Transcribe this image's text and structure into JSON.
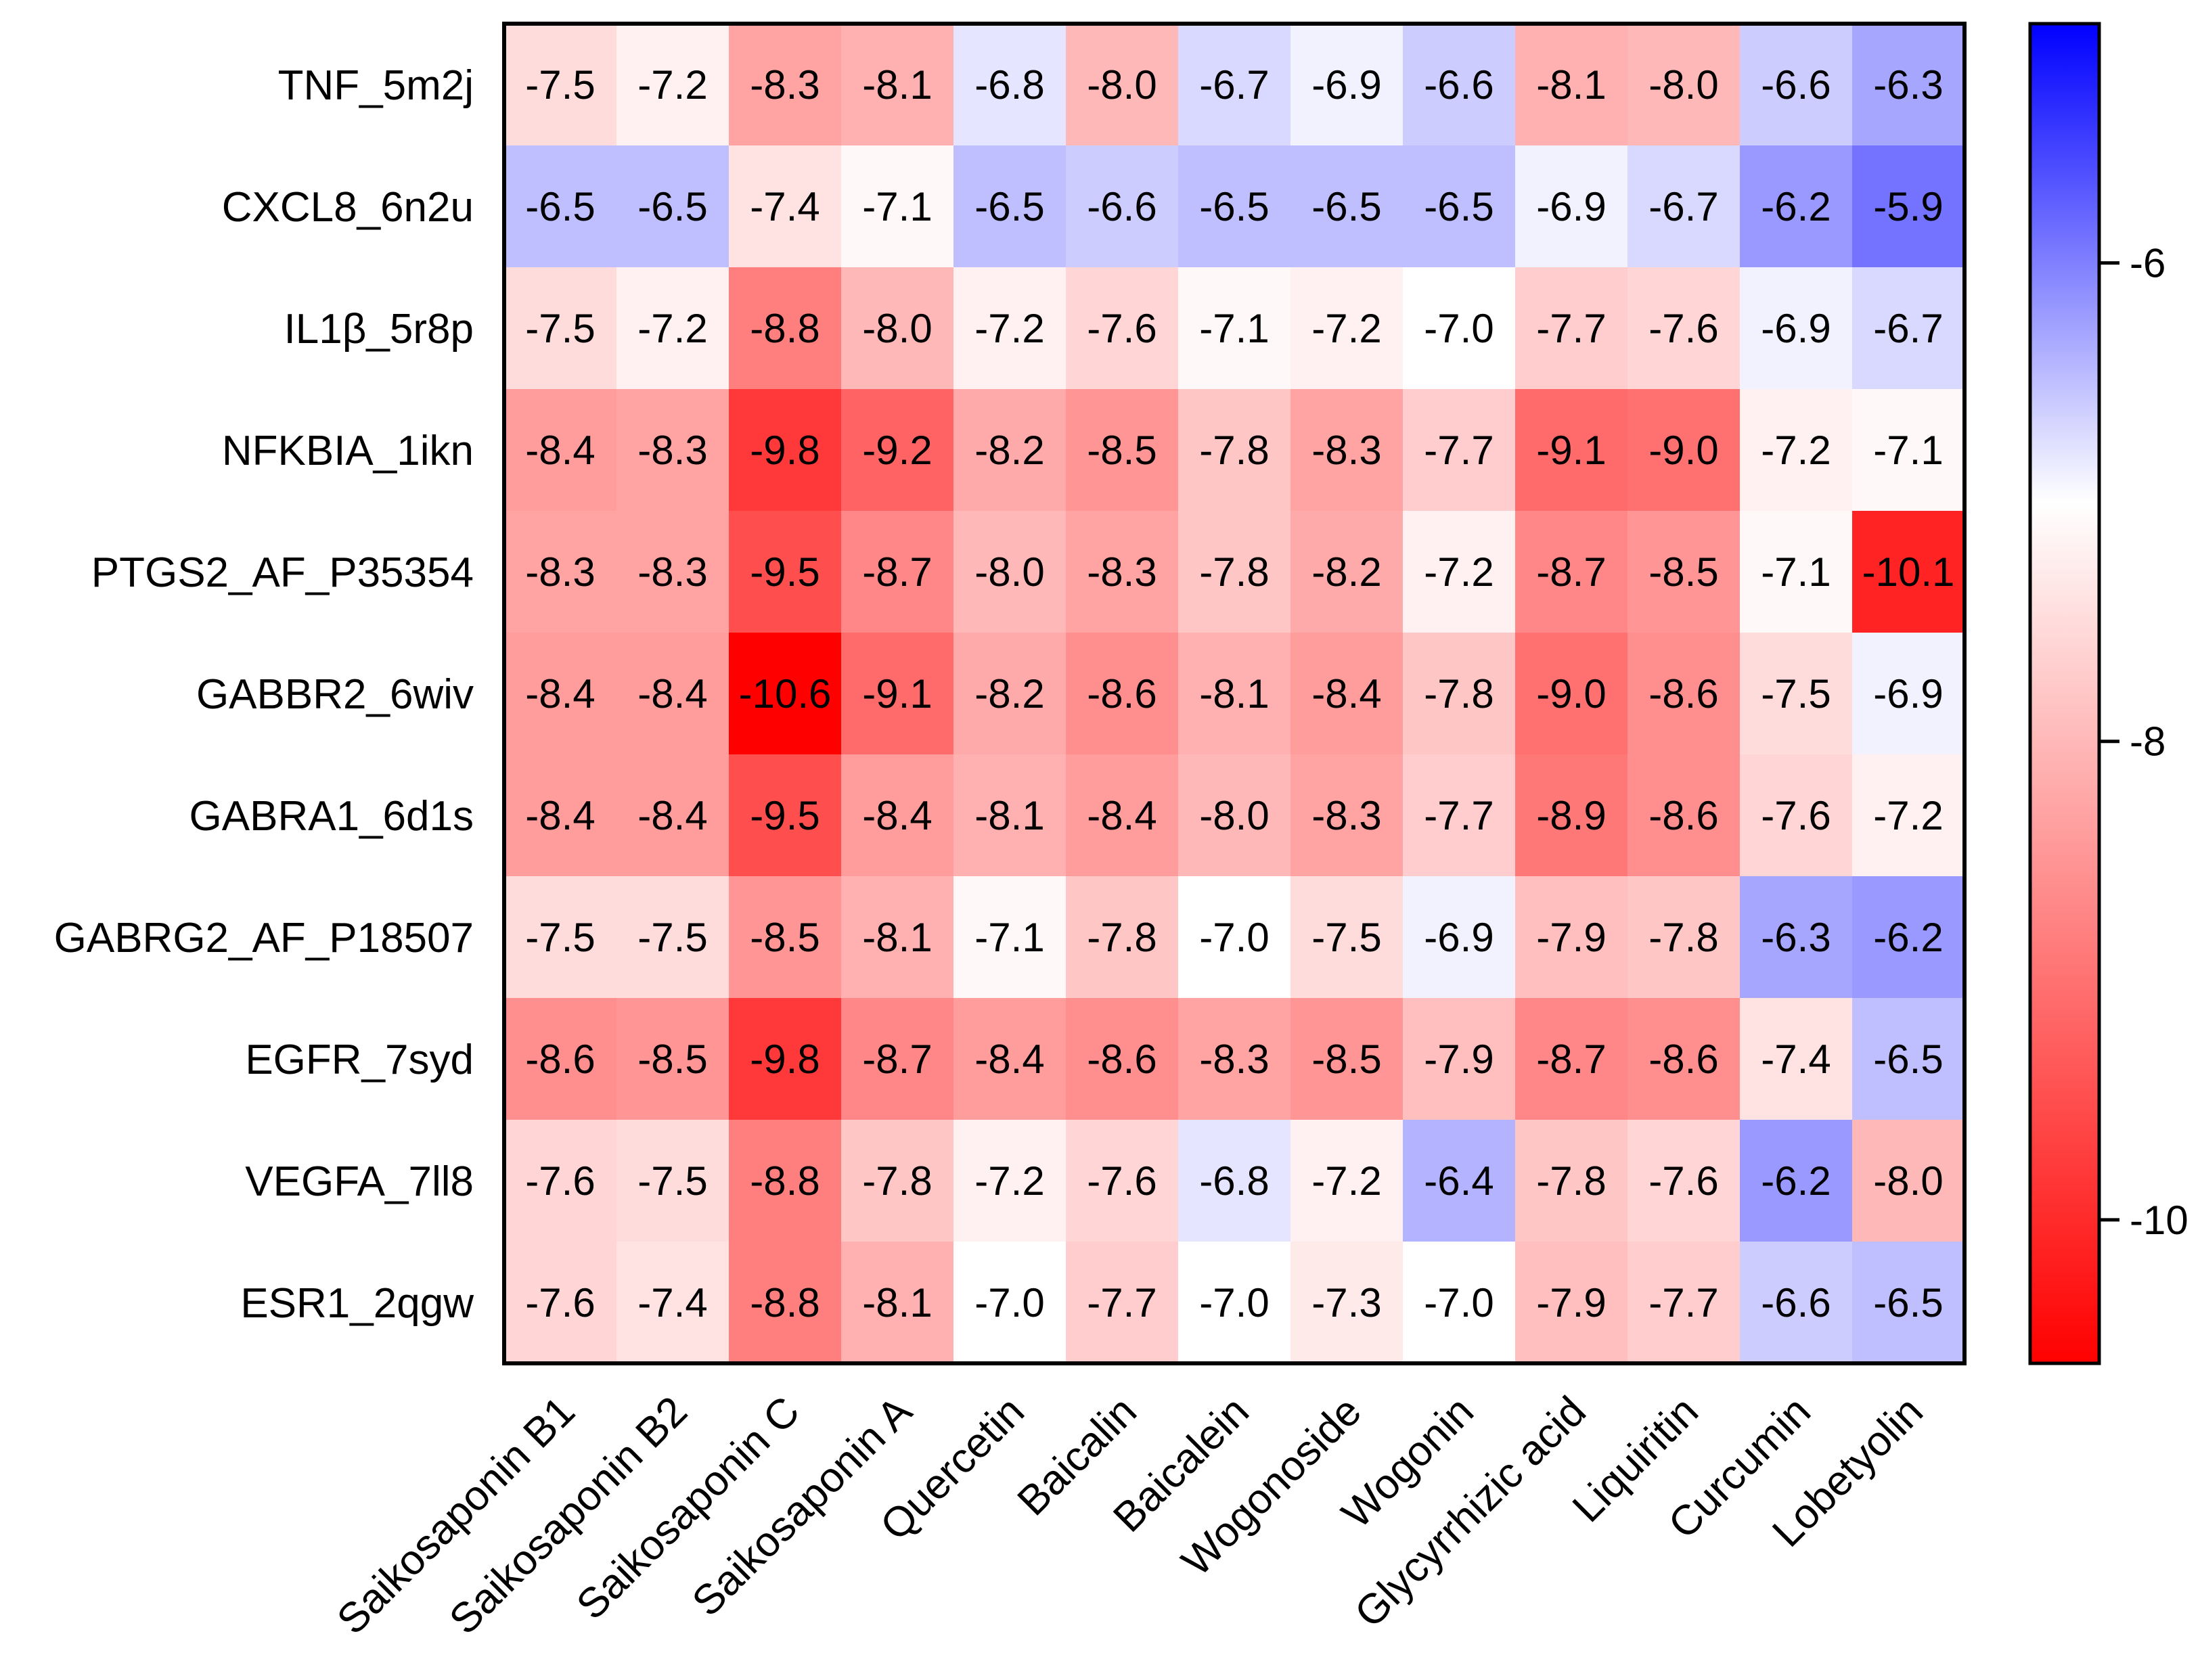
{
  "chart_data": {
    "type": "heatmap",
    "columns": [
      "Saikosaponin B1",
      "Saikosaponin B2",
      "Saikosaponin C",
      "Saikosaponin A",
      "Quercetin",
      "Baicalin",
      "Baicalein",
      "Wogonoside",
      "Wogonin",
      "Glycyrrhizic acid",
      "Liquiritin",
      "Curcumin",
      "Lobetyolin"
    ],
    "rows": [
      "TNF_5m2j",
      "CXCL8_6n2u",
      "IL1β_5r8p",
      "NFKBIA_1ikn",
      "PTGS2_AF_P35354",
      "GABBR2_6wiv",
      "GABRA1_6d1s",
      "GABRG2_AF_P18507",
      "EGFR_7syd",
      "VEGFA_7ll8",
      "ESR1_2qgw"
    ],
    "values": [
      [
        -7.5,
        -7.2,
        -8.3,
        -8.1,
        -6.8,
        -8.0,
        -6.7,
        -6.9,
        -6.6,
        -8.1,
        -8.0,
        -6.6,
        -6.3
      ],
      [
        -6.5,
        -6.5,
        -7.4,
        -7.1,
        -6.5,
        -6.6,
        -6.5,
        -6.5,
        -6.5,
        -6.9,
        -6.7,
        -6.2,
        -5.9
      ],
      [
        -7.5,
        -7.2,
        -8.8,
        -8.0,
        -7.2,
        -7.6,
        -7.1,
        -7.2,
        -7.0,
        -7.7,
        -7.6,
        -6.9,
        -6.7
      ],
      [
        -8.4,
        -8.3,
        -9.8,
        -9.2,
        -8.2,
        -8.5,
        -7.8,
        -8.3,
        -7.7,
        -9.1,
        -9.0,
        -7.2,
        -7.1
      ],
      [
        -8.3,
        -8.3,
        -9.5,
        -8.7,
        -8.0,
        -8.3,
        -7.8,
        -8.2,
        -7.2,
        -8.7,
        -8.5,
        -7.1,
        -10.1
      ],
      [
        -8.4,
        -8.4,
        -10.6,
        -9.1,
        -8.2,
        -8.6,
        -8.1,
        -8.4,
        -7.8,
        -9.0,
        -8.6,
        -7.5,
        -6.9
      ],
      [
        -8.4,
        -8.4,
        -9.5,
        -8.4,
        -8.1,
        -8.4,
        -8.0,
        -8.3,
        -7.7,
        -8.9,
        -8.6,
        -7.6,
        -7.2
      ],
      [
        -7.5,
        -7.5,
        -8.5,
        -8.1,
        -7.1,
        -7.8,
        -7.0,
        -7.5,
        -6.9,
        -7.9,
        -7.8,
        -6.3,
        -6.2
      ],
      [
        -8.6,
        -8.5,
        -9.8,
        -8.7,
        -8.4,
        -8.6,
        -8.3,
        -8.5,
        -7.9,
        -8.7,
        -8.6,
        -7.4,
        -6.5
      ],
      [
        -7.6,
        -7.5,
        -8.8,
        -7.8,
        -7.2,
        -7.6,
        -6.8,
        -7.2,
        -6.4,
        -7.8,
        -7.6,
        -6.2,
        -8.0
      ],
      [
        -7.6,
        -7.4,
        -8.8,
        -8.1,
        -7.0,
        -7.7,
        -7.0,
        -7.3,
        -7.0,
        -7.9,
        -7.7,
        -6.6,
        -6.5
      ]
    ],
    "colorscale": {
      "min": -10.6,
      "mid": -7.0,
      "max": -5.0,
      "low_color": "#ff0000",
      "mid_color": "#ffffff",
      "high_color": "#0000ff"
    },
    "colorbar": {
      "ticks": [
        -6,
        -8,
        -10
      ],
      "tick_labels": [
        "-6",
        "-8",
        "-10"
      ]
    },
    "grid": false,
    "legend": "right"
  }
}
